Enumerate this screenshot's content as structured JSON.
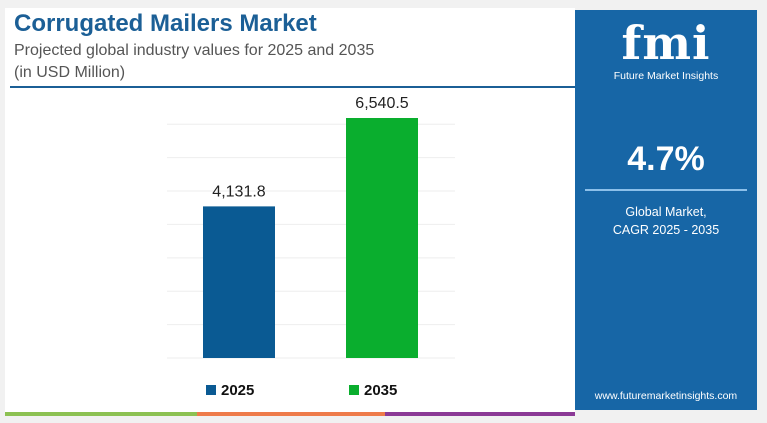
{
  "header": {
    "title": "Corrugated Mailers Market",
    "subtitle_line1": "Projected global industry values for 2025 and 2035",
    "subtitle_line2": "(in USD Million)"
  },
  "chart_data": {
    "type": "bar",
    "title": "Corrugated Mailers Market",
    "categories": [
      "2025",
      "2035"
    ],
    "values": [
      4131.8,
      6540.5
    ],
    "labels": [
      "4,131.8",
      "6,540.5"
    ],
    "colors": [
      "#0a5a93",
      "#0aae2e"
    ],
    "ylabel": "USD Million",
    "ylim": [
      0,
      7000
    ],
    "grid": true,
    "legend": "bottom"
  },
  "panel": {
    "logo": "fmi",
    "logo_sub": "Future Market Insights",
    "cagr": "4.7%",
    "desc1": "Global Market,",
    "desc2": "CAGR 2025 - 2035",
    "url": "www.futuremarketinsights.com",
    "color": "#1766a6"
  }
}
